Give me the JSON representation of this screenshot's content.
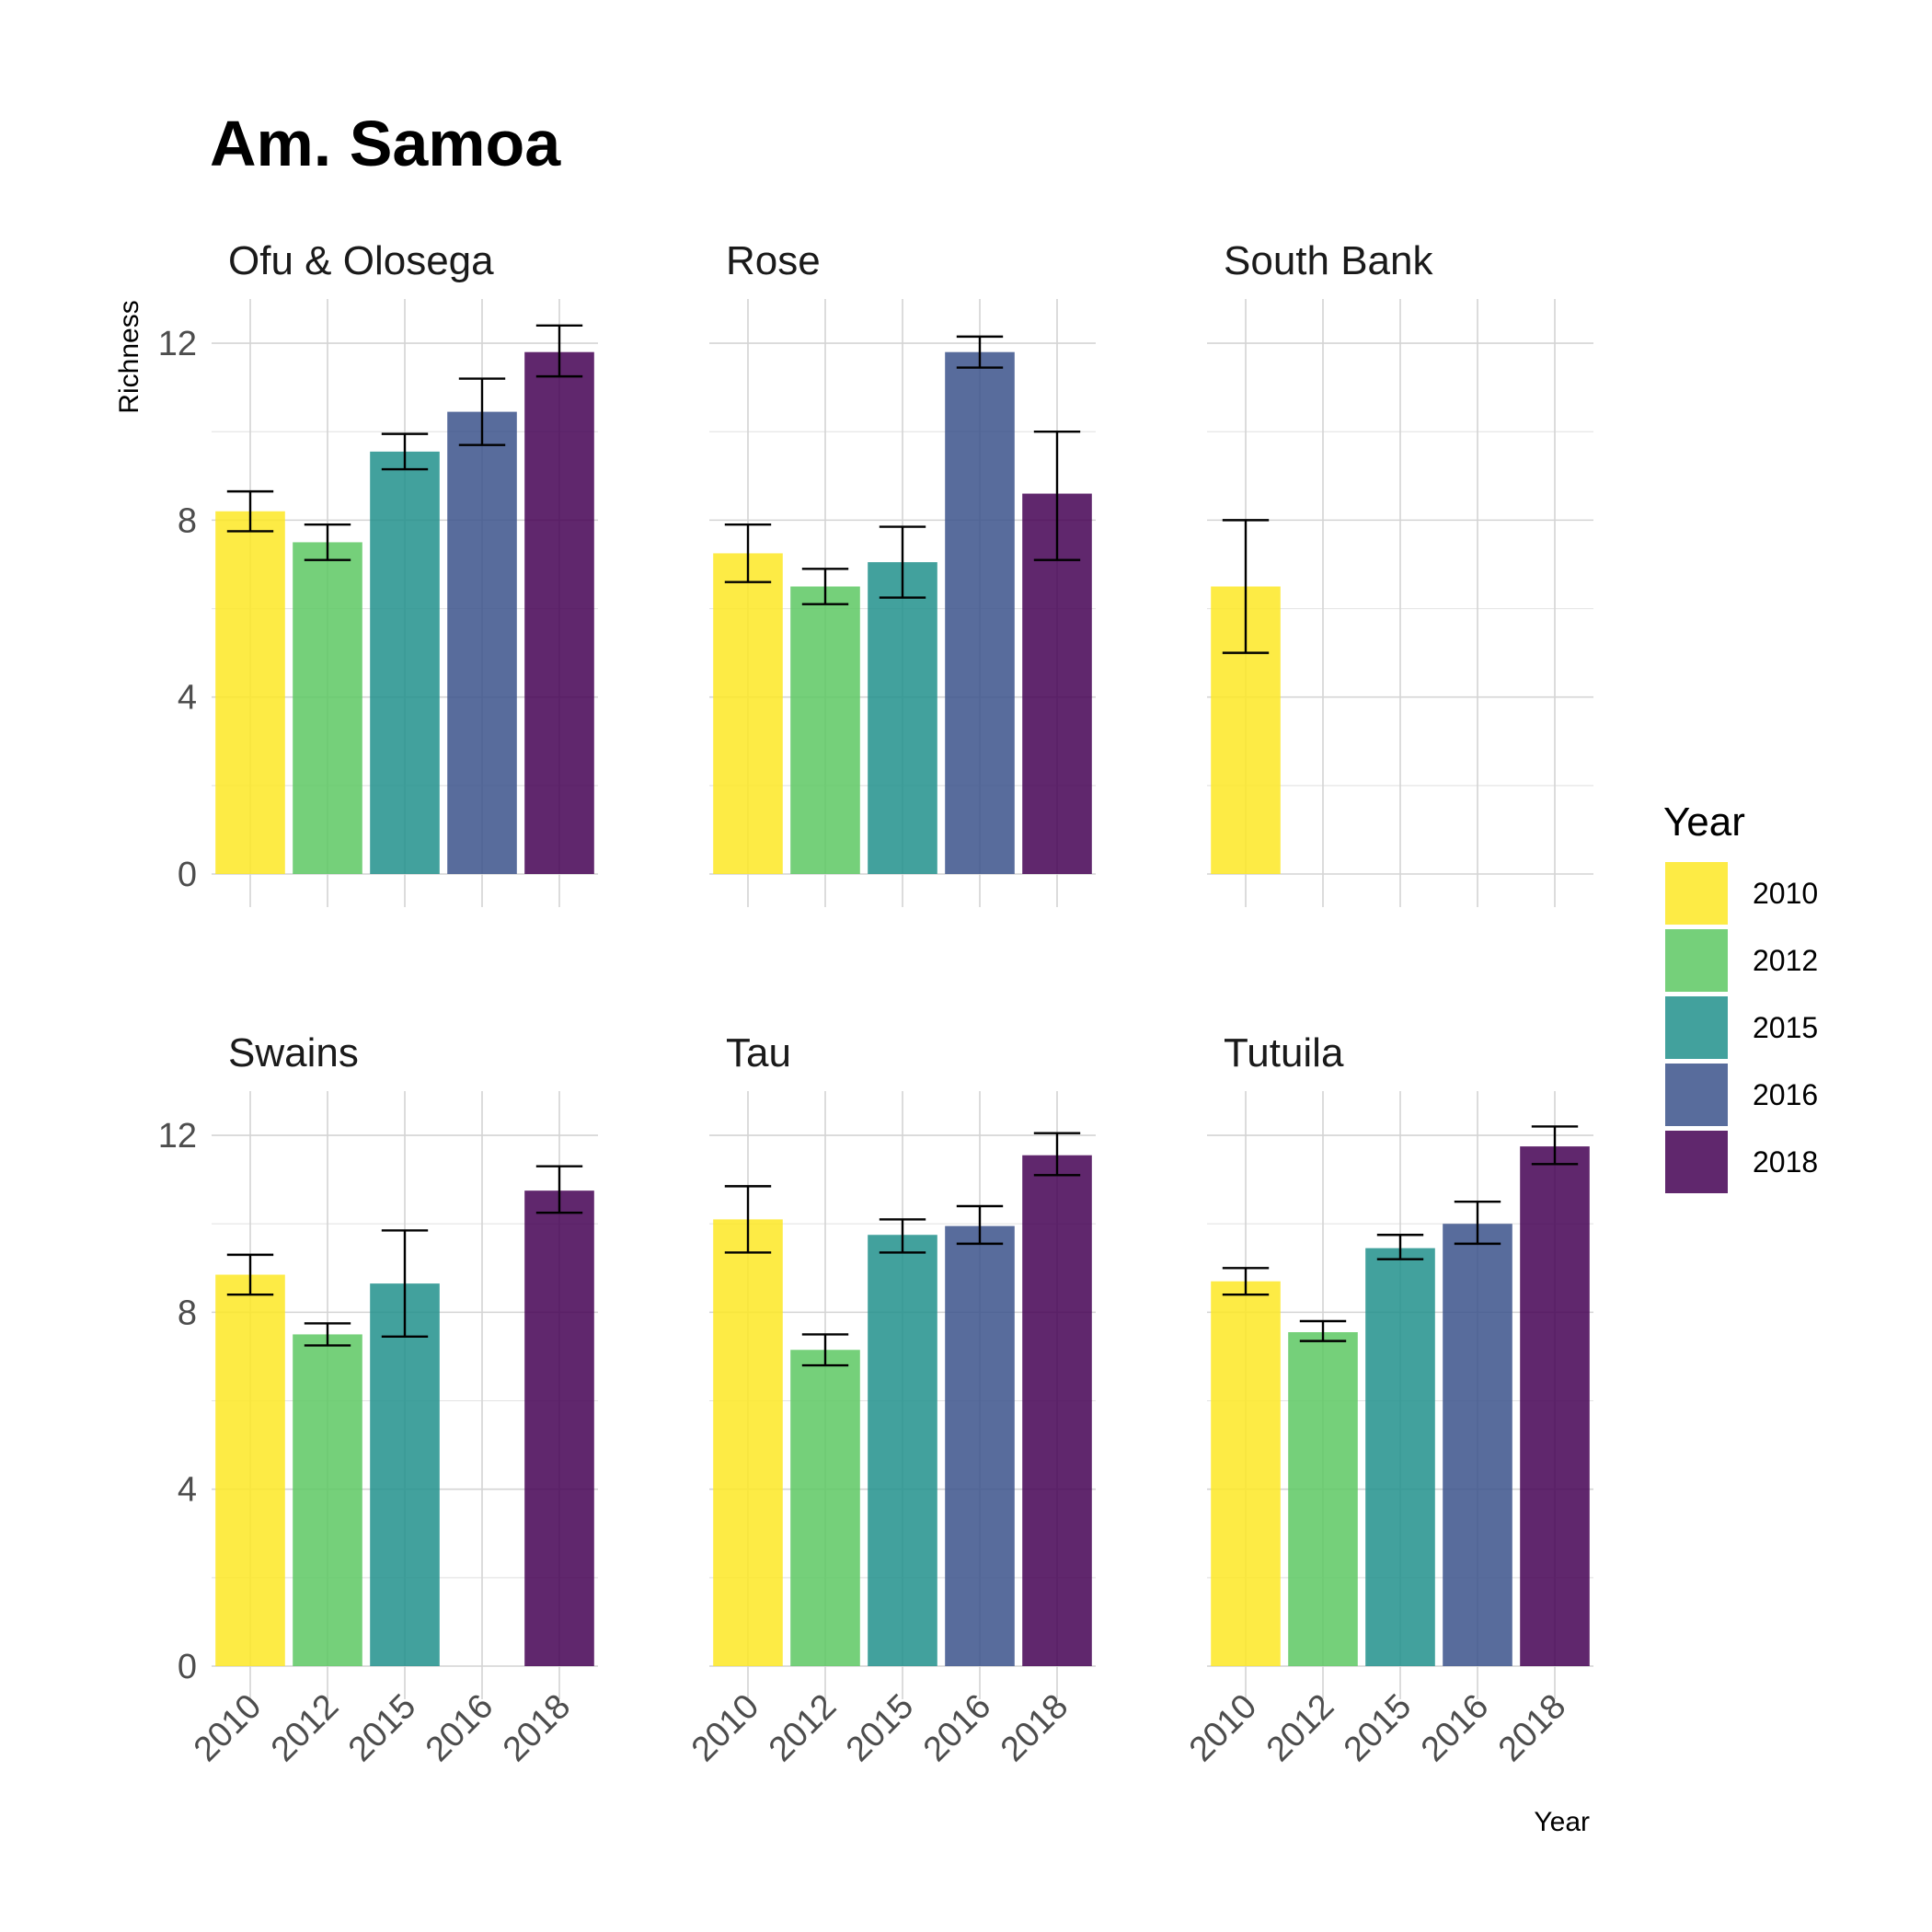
{
  "chart_data": {
    "type": "bar",
    "title": "Am. Samoa",
    "xlabel": "Year",
    "ylabel": "Richness",
    "ylim": [
      0,
      13
    ],
    "y_ticks": [
      "0",
      "4",
      "8",
      "12"
    ],
    "categories": [
      "2010",
      "2012",
      "2015",
      "2016",
      "2018"
    ],
    "colors": {
      "2010": "#FDE725",
      "2012": "#5DC863",
      "2015": "#21908C",
      "2016": "#3B528B",
      "2018": "#440154"
    },
    "bar_opacity": 0.85,
    "legend": {
      "title": "Year",
      "position": "right",
      "entries": [
        "2010",
        "2012",
        "2015",
        "2016",
        "2018"
      ]
    },
    "grid": true,
    "facets": [
      {
        "name": "Ofu & Olosega",
        "values": [
          8.2,
          7.5,
          9.55,
          10.45,
          11.8
        ],
        "lower": [
          7.75,
          7.1,
          9.15,
          9.7,
          11.25
        ],
        "upper": [
          8.65,
          7.9,
          9.95,
          11.2,
          12.4
        ]
      },
      {
        "name": "Rose",
        "values": [
          7.25,
          6.5,
          7.05,
          11.8,
          8.6
        ],
        "lower": [
          6.6,
          6.1,
          6.25,
          11.45,
          7.1
        ],
        "upper": [
          7.9,
          6.9,
          7.85,
          12.15,
          10.0
        ]
      },
      {
        "name": "South Bank",
        "values": [
          6.5,
          null,
          null,
          null,
          null
        ],
        "lower": [
          5.0,
          null,
          null,
          null,
          null
        ],
        "upper": [
          8.0,
          null,
          null,
          null,
          null
        ]
      },
      {
        "name": "Swains",
        "values": [
          8.85,
          7.5,
          8.65,
          null,
          10.75
        ],
        "lower": [
          8.4,
          7.25,
          7.45,
          null,
          10.25
        ],
        "upper": [
          9.3,
          7.75,
          9.85,
          null,
          11.3
        ]
      },
      {
        "name": "Tau",
        "values": [
          10.1,
          7.15,
          9.75,
          9.95,
          11.55
        ],
        "lower": [
          9.35,
          6.8,
          9.35,
          9.55,
          11.1
        ],
        "upper": [
          10.85,
          7.5,
          10.1,
          10.4,
          12.05
        ]
      },
      {
        "name": "Tutuila",
        "values": [
          8.7,
          7.55,
          9.45,
          10.0,
          11.75
        ],
        "lower": [
          8.4,
          7.35,
          9.2,
          9.55,
          11.35
        ],
        "upper": [
          9.0,
          7.8,
          9.75,
          10.5,
          12.2
        ]
      }
    ]
  }
}
